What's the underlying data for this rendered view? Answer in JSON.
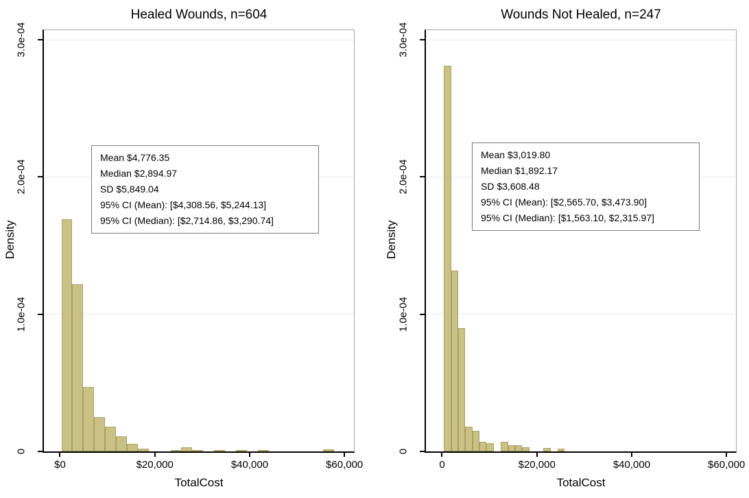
{
  "chart_data": [
    {
      "type": "bar",
      "subtype": "histogram-density",
      "title": "Healed Wounds, n=604",
      "n": 604,
      "xlabel": "TotalCost",
      "ylabel": "Density",
      "xlim": [
        -3400,
        62000
      ],
      "ylim": [
        0,
        0.000307
      ],
      "grid": "horizontal-light",
      "legend": "none",
      "x_tick_values": [
        0,
        20000,
        40000,
        60000
      ],
      "x_tick_labels": [
        "$0",
        "$20,000",
        "$40,000",
        "$60,000"
      ],
      "y_tick_values": [
        0,
        0.0001,
        0.0002,
        0.0003
      ],
      "y_tick_labels": [
        "0",
        "1.0e-04",
        "2.0e-04",
        "3.0e-04"
      ],
      "bin_start": 300,
      "bin_width": 2300,
      "densities": [
        0.000169,
        0.000122,
        4.7e-05,
        2.5e-05,
        1.8e-05,
        1.1e-05,
        5.5e-06,
        1.8e-06,
        0,
        0,
        1.2e-06,
        3e-06,
        1e-06,
        0,
        1.2e-06,
        0,
        1e-06,
        0,
        1e-06,
        0,
        0,
        0,
        0,
        0,
        1.7e-06,
        0
      ],
      "stats_box": {
        "lines": [
          "Mean $4,776.35",
          "Median $2,894.97",
          "SD $5,849.04",
          "95% CI (Mean): [$4,308.56, $5,244.13]",
          "95% CI (Median): [$2,714.86, $3,290.74]"
        ]
      }
    },
    {
      "type": "bar",
      "subtype": "histogram-density",
      "title": "Wounds Not Healed, n=247",
      "n": 247,
      "xlabel": "TotalCost",
      "ylabel": "Density",
      "xlim": [
        -3400,
        62000
      ],
      "ylim": [
        0,
        0.000307
      ],
      "grid": "horizontal-light",
      "legend": "none",
      "x_tick_values": [
        0,
        20000,
        40000,
        60000
      ],
      "x_tick_labels": [
        "0",
        "$20,000",
        "$40,000",
        "$60,000"
      ],
      "y_tick_values": [
        0,
        0.0001,
        0.0002,
        0.0003
      ],
      "y_tick_labels": [
        "0",
        "1.0e-04",
        "2.0e-04",
        "3.0e-04"
      ],
      "bin_start": 400,
      "bin_width": 1500,
      "densities": [
        0.000281,
        0.000132,
        9e-05,
        1.8e-05,
        1.5e-05,
        7e-06,
        6e-06,
        0,
        7e-06,
        4.5e-06,
        4.5e-06,
        3e-06,
        0,
        0,
        2.7e-06,
        0,
        2.2e-06
      ],
      "stats_box": {
        "lines": [
          "Mean $3,019.80",
          "Median $1,892.17",
          "SD $3,608.48",
          "95% CI (Mean): [$2,565.70, $3,473.90]",
          "95% CI (Median): [$1,563.10, $2,315.97]"
        ]
      }
    }
  ],
  "colors": {
    "bar_fill": "#cac285",
    "bar_border": "#a9a164",
    "gridline": "#e6e9ea",
    "frame": "#a6a6a6",
    "axis": "#000000",
    "stats_box_border": "#7a7a7a",
    "background": "#ffffff"
  }
}
